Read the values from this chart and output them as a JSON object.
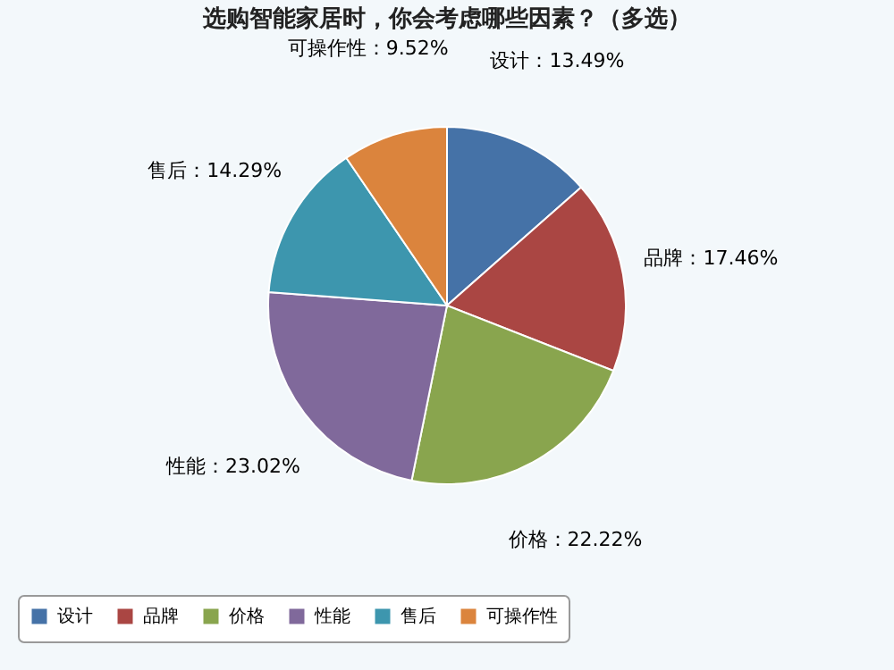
{
  "chart_data": {
    "type": "pie",
    "title": "选购智能家居时，你会考虑哪些因素？（多选）",
    "categories": [
      "设计",
      "品牌",
      "价格",
      "性能",
      "售后",
      "可操作性"
    ],
    "values": [
      13.49,
      17.46,
      22.22,
      23.02,
      14.29,
      9.52
    ],
    "colors": [
      "#4572a7",
      "#aa4643",
      "#89a54e",
      "#80699b",
      "#3d96ae",
      "#db843d"
    ],
    "value_labels": [
      "设计：13.49%",
      "品牌：17.46%",
      "价格：22.22%",
      "性能：23.02%",
      "售后：14.29%",
      "可操作性：9.52%"
    ],
    "legend": "bottom"
  }
}
